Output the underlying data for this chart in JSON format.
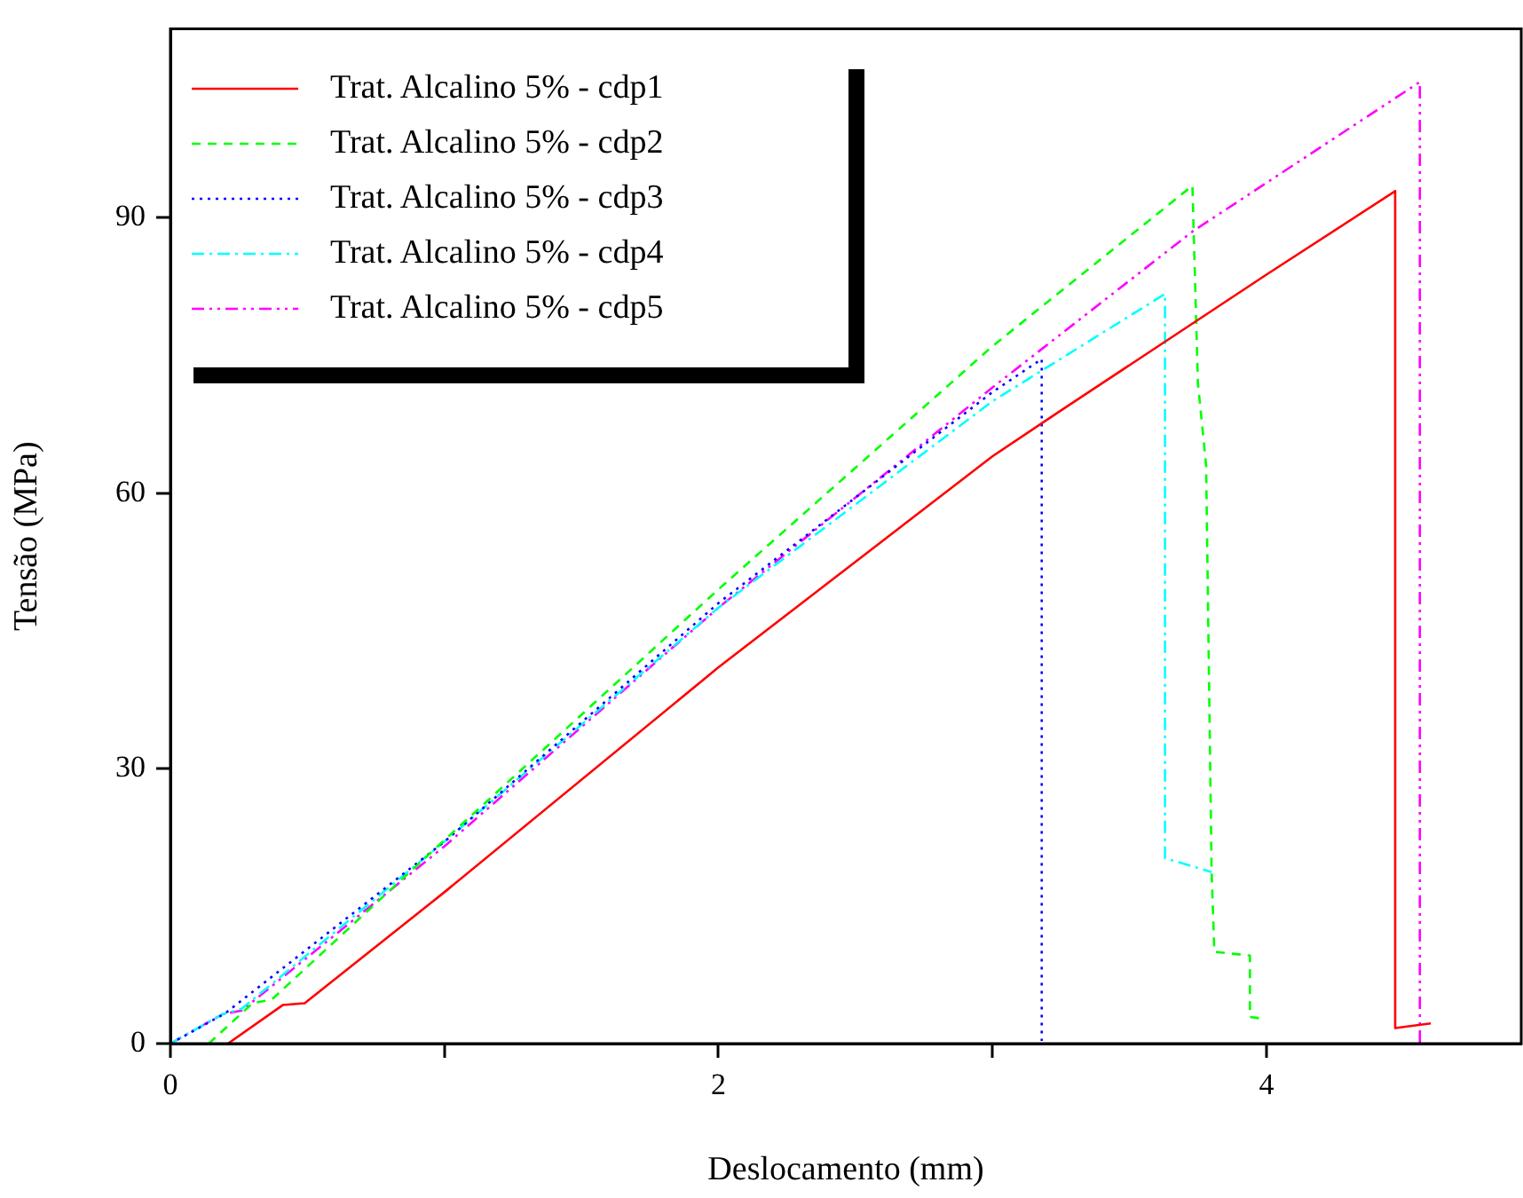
{
  "chart_data": {
    "type": "line",
    "xlabel": "Deslocamento (mm)",
    "ylabel": "Tensão (MPa)",
    "xlim": [
      0,
      4.93
    ],
    "xticks": [
      0,
      {
        "value": 1,
        "label": null
      },
      2,
      {
        "value": 3,
        "label": null
      },
      4
    ],
    "ylim": [
      0,
      110.6
    ],
    "yticks": [
      0,
      30,
      60,
      90
    ],
    "grid": false,
    "legend": "top left",
    "marker": "none",
    "series": [
      {
        "name": "Trat. Alcalino 5% - cdp1",
        "color": "#ff0000",
        "line_style": "solid",
        "x": [
          0.21,
          0.41,
          0.49,
          1,
          2,
          3,
          3.24,
          4,
          4.47,
          4.47,
          4.6
        ],
        "values": [
          0,
          4.2,
          4.4,
          16.5,
          41,
          64,
          68.8,
          83.8,
          92.9,
          1.7,
          2.2
        ]
      },
      {
        "name": "Trat. Alcalino 5% - cdp2",
        "color": "#00ff00",
        "line_style": "dashed",
        "x": [
          0.14,
          0.3,
          0.37,
          0.95,
          2,
          3,
          3.73,
          3.75,
          3.78,
          3.8,
          3.81,
          3.94,
          3.94,
          3.99
        ],
        "values": [
          0,
          4.4,
          4.8,
          20.8,
          49.5,
          76,
          93.5,
          72,
          63,
          18.8,
          10,
          9.6,
          2.9,
          2.7
        ]
      },
      {
        "name": "Trat. Alcalino 5% - cdp3",
        "color": "#0000ff",
        "line_style": "dotted",
        "x": [
          0,
          0.2,
          1,
          2,
          3,
          3.18,
          3.18
        ],
        "values": [
          0,
          3.3,
          22,
          48,
          71,
          74.6,
          0.3
        ]
      },
      {
        "name": "Trat. Alcalino 5% - cdp4",
        "color": "#00ffff",
        "line_style": "dashdot",
        "x": [
          0,
          0.19,
          0.26,
          1,
          2,
          3,
          3.63,
          3.63,
          3.8
        ],
        "values": [
          0,
          3.2,
          3.8,
          22,
          47.5,
          70,
          81.7,
          20.2,
          18.7
        ]
      },
      {
        "name": "Trat. Alcalino 5% - cdp5",
        "color": "#ff00ff",
        "line_style": "dashdotdot",
        "x": [
          0,
          0.19,
          0.26,
          1,
          2,
          3,
          3.73,
          4.56,
          4.56
        ],
        "values": [
          0,
          3.2,
          3.6,
          21.5,
          47.5,
          71.5,
          88.5,
          104.8,
          0
        ]
      }
    ]
  }
}
